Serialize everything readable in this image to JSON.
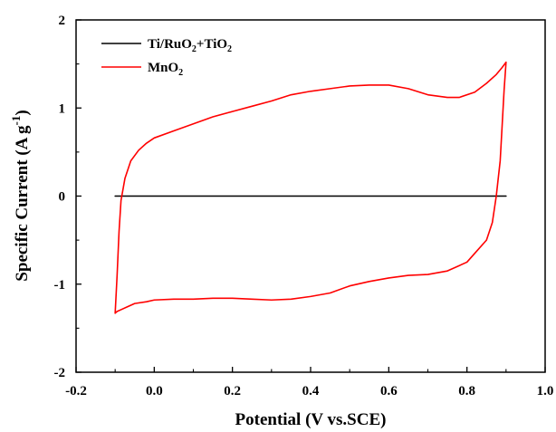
{
  "chart_data": {
    "type": "line",
    "xlabel": "Potential (V vs.SCE)",
    "ylabel": "Specific Current (A g",
    "ylabel_sup": "-1",
    "ylabel_close": ")",
    "xlim": [
      -0.2,
      1.0
    ],
    "ylim": [
      -2,
      2
    ],
    "xticks": [
      "-0.2",
      "0.0",
      "0.2",
      "0.4",
      "0.6",
      "0.8",
      "1.0"
    ],
    "yticks": [
      "2",
      "1",
      "0",
      "-1",
      "-2"
    ],
    "grid": false,
    "legend_position": "top-left",
    "series": [
      {
        "name": "Ti/RuO2+TiO2",
        "name_parts": {
          "a": "Ti/RuO",
          "b": "2",
          "c": "+TiO",
          "d": "2"
        },
        "color": "#000000",
        "x": [
          -0.1,
          0.9
        ],
        "y": [
          0.0,
          0.0
        ]
      },
      {
        "name": "MnO2",
        "name_parts": {
          "a": "MnO",
          "b": "2"
        },
        "color": "#ff0000",
        "x": [
          -0.1,
          -0.095,
          -0.09,
          -0.085,
          -0.075,
          -0.06,
          -0.04,
          -0.02,
          0.0,
          0.05,
          0.1,
          0.15,
          0.2,
          0.25,
          0.3,
          0.35,
          0.4,
          0.45,
          0.5,
          0.55,
          0.6,
          0.65,
          0.7,
          0.75,
          0.78,
          0.82,
          0.85,
          0.875,
          0.89,
          0.9,
          0.9,
          0.895,
          0.89,
          0.885,
          0.875,
          0.865,
          0.85,
          0.82,
          0.8,
          0.75,
          0.7,
          0.65,
          0.6,
          0.55,
          0.5,
          0.45,
          0.4,
          0.35,
          0.3,
          0.25,
          0.2,
          0.15,
          0.1,
          0.05,
          0.0,
          -0.02,
          -0.05,
          -0.07,
          -0.085,
          -0.095,
          -0.1
        ],
        "y": [
          -1.33,
          -0.9,
          -0.4,
          -0.05,
          0.2,
          0.4,
          0.52,
          0.6,
          0.66,
          0.74,
          0.82,
          0.9,
          0.96,
          1.02,
          1.08,
          1.15,
          1.19,
          1.22,
          1.25,
          1.26,
          1.26,
          1.22,
          1.15,
          1.12,
          1.12,
          1.18,
          1.28,
          1.38,
          1.46,
          1.52,
          1.52,
          1.2,
          0.8,
          0.4,
          0.0,
          -0.3,
          -0.5,
          -0.65,
          -0.75,
          -0.85,
          -0.89,
          -0.9,
          -0.93,
          -0.97,
          -1.02,
          -1.1,
          -1.14,
          -1.17,
          -1.18,
          -1.17,
          -1.16,
          -1.16,
          -1.17,
          -1.17,
          -1.18,
          -1.2,
          -1.22,
          -1.26,
          -1.29,
          -1.31,
          -1.33
        ]
      }
    ]
  }
}
